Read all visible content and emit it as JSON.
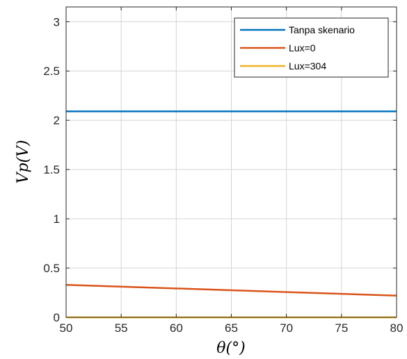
{
  "chart_data": {
    "type": "line",
    "title": "",
    "xlabel": "θ(°)",
    "ylabel": "Vp(V)",
    "xlim": [
      50,
      80
    ],
    "ylim": [
      0,
      3.15
    ],
    "x_ticks": [
      50,
      55,
      60,
      65,
      70,
      75,
      80
    ],
    "y_ticks": [
      0,
      0.5,
      1,
      1.5,
      2,
      2.5,
      3
    ],
    "x_tick_labels": [
      "50",
      "55",
      "60",
      "65",
      "70",
      "75",
      "80"
    ],
    "y_tick_labels": [
      "0",
      "0.5",
      "1",
      "1.5",
      "2",
      "2.5",
      "3"
    ],
    "grid": true,
    "legend_position": "top-right",
    "x": [
      50,
      80
    ],
    "series": [
      {
        "name": "Tanpa skenario",
        "color": "#0072BD",
        "values": [
          2.09,
          2.09
        ]
      },
      {
        "name": "Lux=0",
        "color": "#D95319",
        "values": [
          0.33,
          0.22
        ]
      },
      {
        "name": "Lux=304",
        "color": "#EDB120",
        "values": [
          0.0,
          0.0
        ]
      }
    ]
  }
}
